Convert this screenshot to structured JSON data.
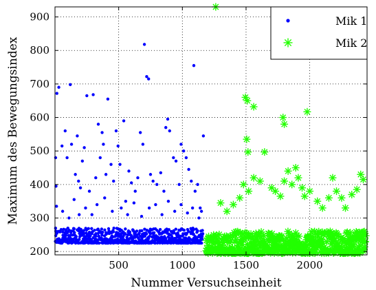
{
  "chart_data": {
    "type": "scatter",
    "title": "",
    "xlabel": "Nummer Versuchseinheit",
    "ylabel": "Maximum des Bewegungsindex",
    "xlim": [
      0,
      2450
    ],
    "ylim": [
      190,
      930
    ],
    "grid": true,
    "legend_position": "top-right",
    "x_ticks": [
      500,
      1000,
      1500,
      2000
    ],
    "y_ticks": [
      200,
      300,
      400,
      500,
      600,
      700,
      800,
      900
    ],
    "series": [
      {
        "name": "Mik 1",
        "marker": "dot",
        "color": "#0000ff",
        "points": [
          [
            5,
            480
          ],
          [
            8,
            395
          ],
          [
            12,
            335
          ],
          [
            15,
            672
          ],
          [
            30,
            690
          ],
          [
            55,
            515
          ],
          [
            80,
            560
          ],
          [
            95,
            480
          ],
          [
            120,
            698
          ],
          [
            130,
            520
          ],
          [
            160,
            430
          ],
          [
            175,
            545
          ],
          [
            185,
            410
          ],
          [
            200,
            390
          ],
          [
            215,
            470
          ],
          [
            230,
            510
          ],
          [
            250,
            665
          ],
          [
            270,
            380
          ],
          [
            300,
            668
          ],
          [
            320,
            420
          ],
          [
            340,
            580
          ],
          [
            355,
            480
          ],
          [
            370,
            555
          ],
          [
            380,
            520
          ],
          [
            400,
            430
          ],
          [
            415,
            655
          ],
          [
            440,
            460
          ],
          [
            460,
            410
          ],
          [
            480,
            560
          ],
          [
            495,
            515
          ],
          [
            510,
            460
          ],
          [
            540,
            590
          ],
          [
            555,
            350
          ],
          [
            580,
            440
          ],
          [
            600,
            405
          ],
          [
            630,
            380
          ],
          [
            650,
            420
          ],
          [
            670,
            555
          ],
          [
            690,
            520
          ],
          [
            702,
            818
          ],
          [
            720,
            722
          ],
          [
            735,
            715
          ],
          [
            750,
            430
          ],
          [
            770,
            410
          ],
          [
            800,
            400
          ],
          [
            830,
            435
          ],
          [
            855,
            380
          ],
          [
            870,
            570
          ],
          [
            885,
            595
          ],
          [
            900,
            560
          ],
          [
            930,
            480
          ],
          [
            950,
            470
          ],
          [
            975,
            400
          ],
          [
            990,
            520
          ],
          [
            1010,
            500
          ],
          [
            1030,
            480
          ],
          [
            1050,
            445
          ],
          [
            1070,
            410
          ],
          [
            1090,
            755
          ],
          [
            1100,
            380
          ],
          [
            1120,
            400
          ],
          [
            1140,
            330
          ],
          [
            1165,
            545
          ],
          [
            60,
            320
          ],
          [
            110,
            300
          ],
          [
            150,
            355
          ],
          [
            190,
            310
          ],
          [
            240,
            330
          ],
          [
            290,
            310
          ],
          [
            330,
            340
          ],
          [
            390,
            360
          ],
          [
            450,
            320
          ],
          [
            520,
            330
          ],
          [
            570,
            310
          ],
          [
            620,
            345
          ],
          [
            680,
            305
          ],
          [
            740,
            330
          ],
          [
            790,
            340
          ],
          [
            840,
            310
          ],
          [
            890,
            350
          ],
          [
            940,
            320
          ],
          [
            990,
            340
          ],
          [
            1040,
            315
          ],
          [
            1080,
            330
          ],
          [
            1130,
            300
          ],
          [
            1150,
            320
          ]
        ],
        "baseline_band": {
          "from": 1,
          "to": 1160,
          "min": 225,
          "max": 270
        }
      },
      {
        "name": "Mik 2",
        "marker": "asterisk",
        "color": "#22ff00",
        "points": [
          [
            1262,
            930
          ],
          [
            1495,
            660
          ],
          [
            1510,
            650
          ],
          [
            1505,
            535
          ],
          [
            1515,
            497
          ],
          [
            1560,
            632
          ],
          [
            1645,
            497
          ],
          [
            1790,
            600
          ],
          [
            1800,
            580
          ],
          [
            1980,
            617
          ],
          [
            1560,
            420
          ],
          [
            1610,
            410
          ],
          [
            1700,
            390
          ],
          [
            1730,
            380
          ],
          [
            1770,
            365
          ],
          [
            1800,
            410
          ],
          [
            1830,
            440
          ],
          [
            1860,
            400
          ],
          [
            1890,
            450
          ],
          [
            1910,
            420
          ],
          [
            1940,
            390
          ],
          [
            1960,
            365
          ],
          [
            2000,
            380
          ],
          [
            2060,
            350
          ],
          [
            2100,
            330
          ],
          [
            2150,
            360
          ],
          [
            2180,
            420
          ],
          [
            2210,
            380
          ],
          [
            2250,
            360
          ],
          [
            2280,
            330
          ],
          [
            2330,
            370
          ],
          [
            2370,
            385
          ],
          [
            2400,
            430
          ],
          [
            2420,
            415
          ],
          [
            1480,
            400
          ],
          [
            1520,
            380
          ],
          [
            1300,
            345
          ],
          [
            1350,
            320
          ],
          [
            1400,
            340
          ],
          [
            1450,
            360
          ]
        ],
        "baseline_band": {
          "from": 1185,
          "to": 2440,
          "min": 195,
          "max": 260
        }
      }
    ]
  }
}
